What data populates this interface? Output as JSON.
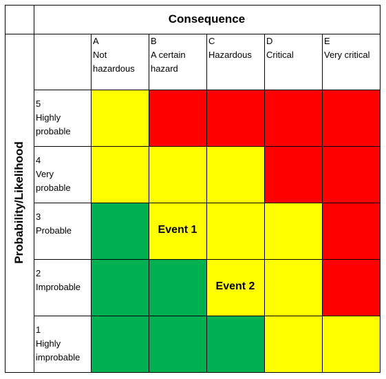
{
  "header": {
    "consequence_title": "Consequence",
    "likelihood_title": "Probability/Likelihood"
  },
  "columns": [
    {
      "letter": "A",
      "lines": [
        "Not",
        "hazardous"
      ]
    },
    {
      "letter": "B",
      "lines": [
        "A certain",
        "hazard"
      ]
    },
    {
      "letter": "C",
      "lines": [
        "Hazardous"
      ]
    },
    {
      "letter": "D",
      "lines": [
        "Critical"
      ]
    },
    {
      "letter": "E",
      "lines": [
        "Very critical"
      ]
    }
  ],
  "rows": [
    {
      "number": "5",
      "lines": [
        "Highly",
        "probable"
      ]
    },
    {
      "number": "4",
      "lines": [
        "Very",
        "probable"
      ]
    },
    {
      "number": "3",
      "lines": [
        "Probable"
      ]
    },
    {
      "number": "2",
      "lines": [
        "Improbable"
      ]
    },
    {
      "number": "1",
      "lines": [
        "Highly",
        "improbable"
      ]
    }
  ],
  "colors": {
    "green": "#00b050",
    "yellow": "#ffff00",
    "red": "#ff0000"
  },
  "grid_colors": [
    [
      "yellow",
      "red",
      "red",
      "red",
      "red"
    ],
    [
      "yellow",
      "yellow",
      "yellow",
      "red",
      "red"
    ],
    [
      "green",
      "yellow",
      "yellow",
      "yellow",
      "red"
    ],
    [
      "green",
      "green",
      "yellow",
      "yellow",
      "red"
    ],
    [
      "green",
      "green",
      "green",
      "yellow",
      "yellow"
    ]
  ],
  "events": [
    {
      "label": "Event 1",
      "row": 2,
      "col": 1
    },
    {
      "label": "Event 2",
      "row": 3,
      "col": 2
    }
  ]
}
